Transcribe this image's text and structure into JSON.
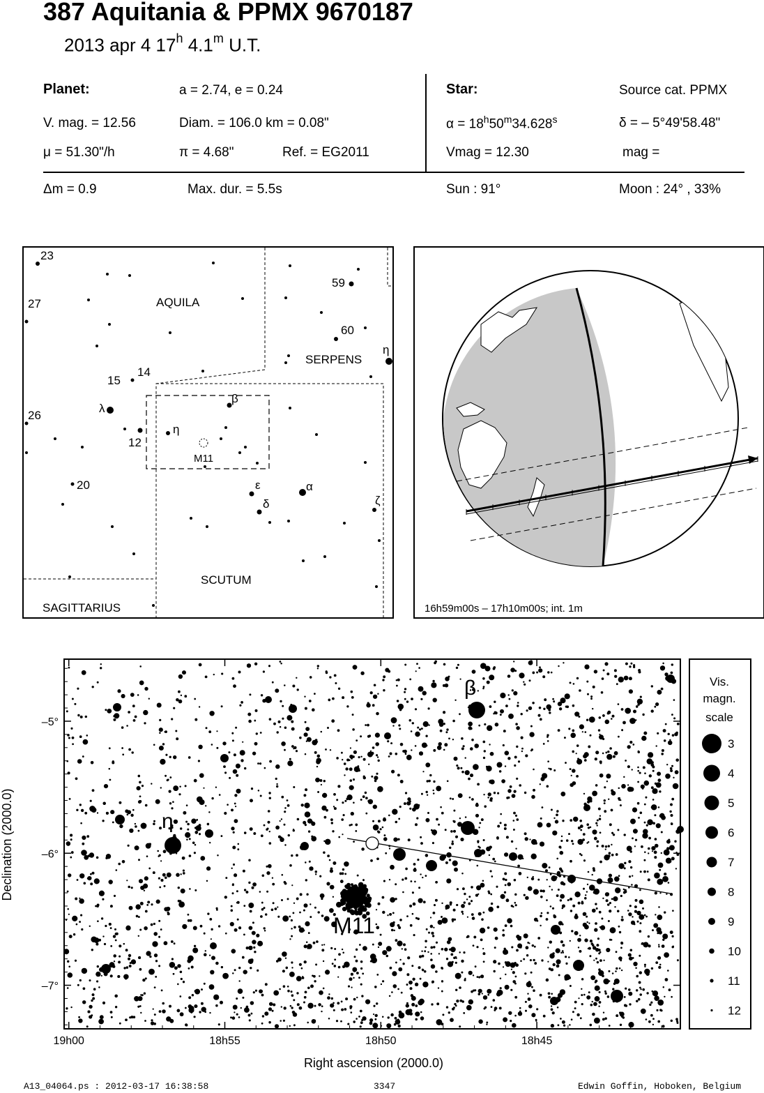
{
  "header": {
    "title": "387 Aquitania  &  PPMX 9670187",
    "date": "2013 apr  4  17",
    "hour_unit": "h",
    "minutes": " 4.1",
    "minute_unit": "m",
    "time_suffix": " U.T."
  },
  "planet": {
    "label": "Planet:",
    "orbit": "a = 2.74, e = 0.24",
    "vmag": "V. mag. = 12.56",
    "diam": "Diam. = 106.0 km = 0.08\"",
    "mu": "μ =  51.30\"/h",
    "pi": "π =  4.68\"",
    "ref": "Ref. = EG2011"
  },
  "star": {
    "label": "Star:",
    "source": "Source cat.  PPMX",
    "alpha_prefix": "α = 18",
    "alpha_h": "h",
    "alpha_m_val": "50",
    "alpha_m": "m",
    "alpha_s_val": "34.628",
    "alpha_s": "s",
    "delta": "δ = – 5°49'58.48\"",
    "vmag": "Vmag = 12.30",
    "mag": "mag ="
  },
  "event": {
    "dm": "Δm = 0.9",
    "maxdur": "Max. dur. = 5.5s",
    "sun": "Sun :  91°",
    "moon": "Moon :  24° , 33%"
  },
  "finder": {
    "constellations": [
      "AQUILA",
      "SERPENS",
      "SCUTUM",
      "SAGITTARIUS"
    ],
    "star_labels": [
      "23",
      "27",
      "59",
      "60",
      "η",
      "15",
      "14",
      "λ",
      "β",
      "26",
      "12",
      "η",
      "M11",
      "20",
      "ε",
      "α",
      "δ",
      "ζ"
    ]
  },
  "globe": {
    "caption": "16h59m00s – 17h10m00s; int.  1m"
  },
  "chart_data": {
    "type": "scatter",
    "title": "",
    "xlabel": "Right ascension (2000.0)",
    "ylabel": "Declination (2000.0)",
    "x_ticks": [
      "19h00",
      "18h55",
      "18h50",
      "18h45"
    ],
    "y_ticks": [
      "–5°",
      "–6°",
      "–7°"
    ],
    "annotations": [
      "β",
      "η",
      "M11"
    ],
    "path_start": {
      "ra": "18h51.3",
      "dec": -5.82
    },
    "path_end": {
      "ra": "18h41.7",
      "dec": -6.25
    },
    "legend_title": [
      "Vis.",
      "magn.",
      "scale"
    ],
    "legend_mags": [
      "3",
      "4",
      "5",
      "6",
      "7",
      "8",
      "9",
      "10",
      "11",
      "12"
    ]
  },
  "footer": {
    "file": "A13_04064.ps : 2012-03-17 16:38:58",
    "number": "3347",
    "author": "Edwin Goffin, Hoboken, Belgium"
  }
}
